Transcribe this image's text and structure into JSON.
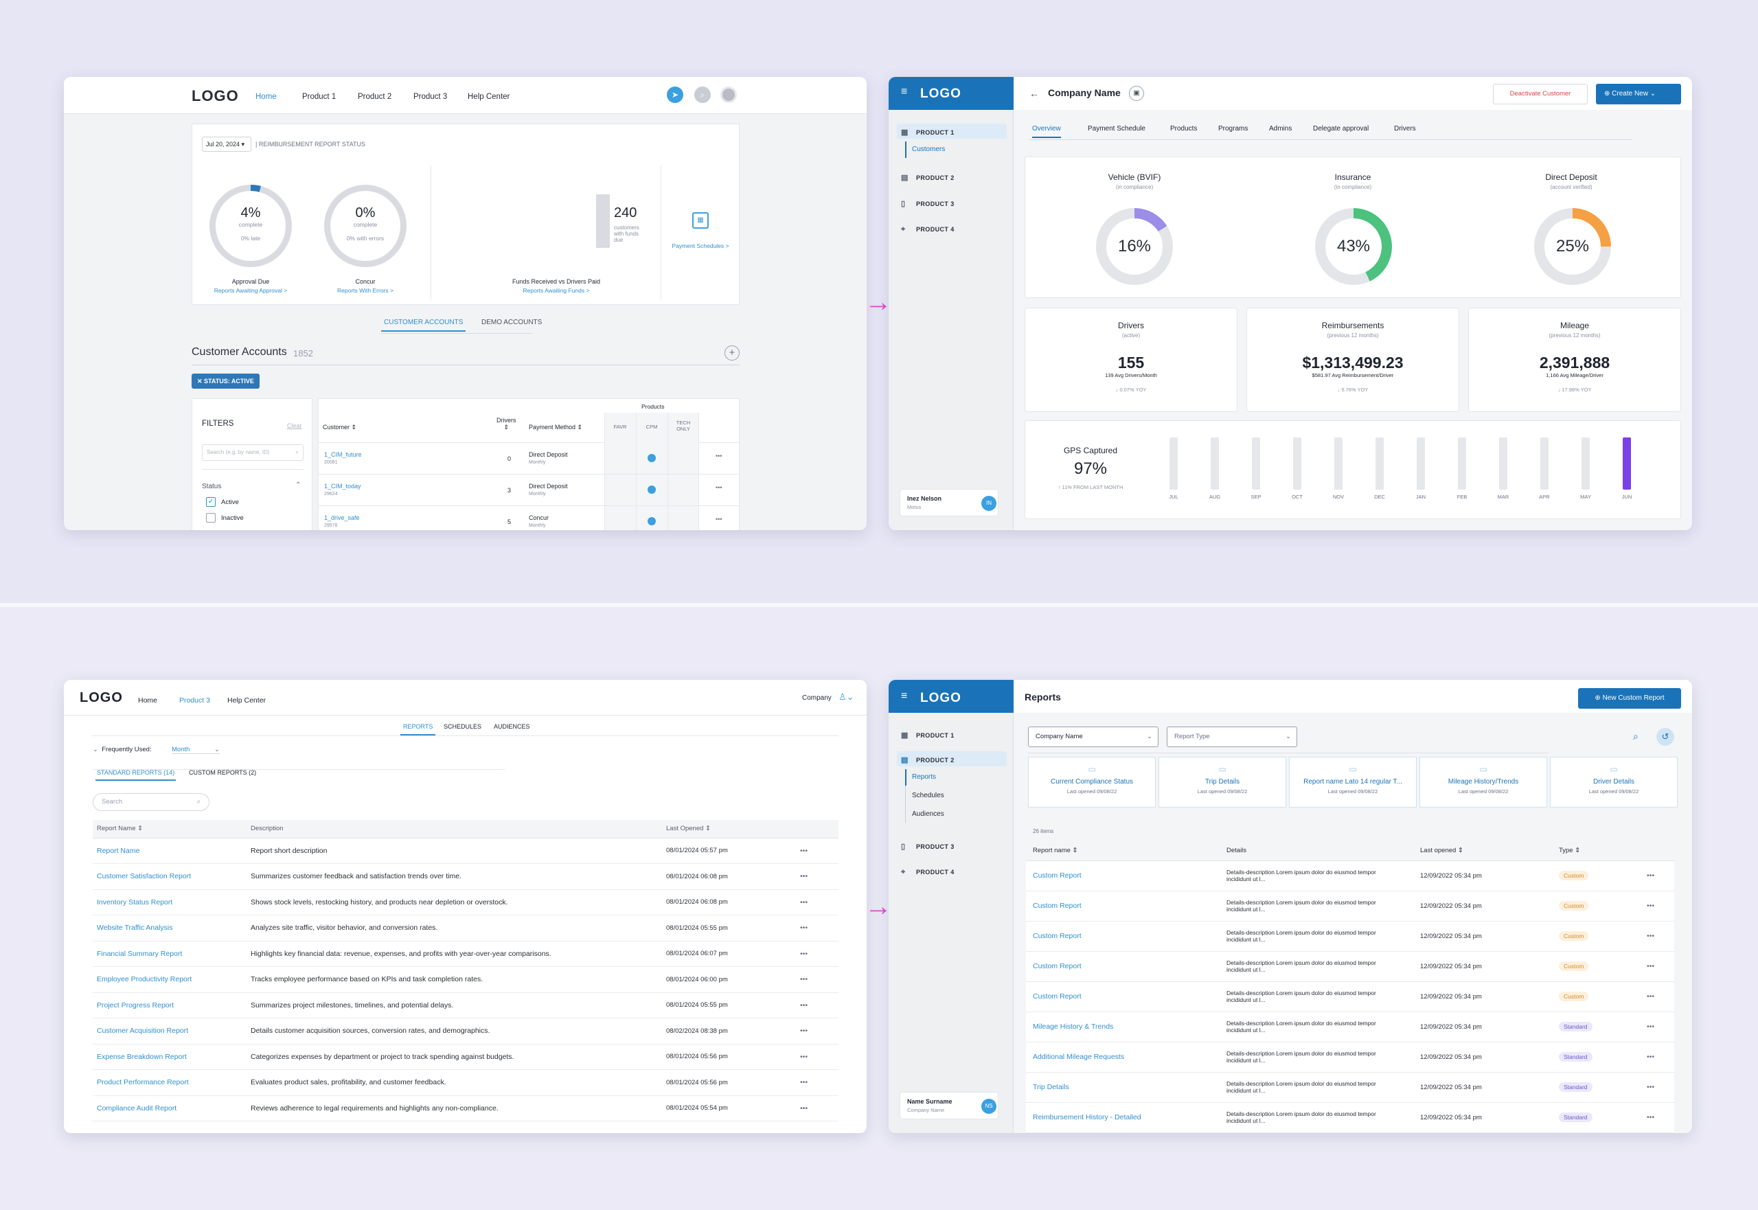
{
  "frameA": {
    "logo": "LOGO",
    "nav": [
      "Home",
      "Product 1",
      "Product 2",
      "Product 3",
      "Help Center"
    ],
    "date": "Jul 20, 2024",
    "status_title": "| REIMBURSEMENT REPORT STATUS",
    "kpis": [
      {
        "value": "4%",
        "sub1": "complete",
        "sub2": "0% late",
        "label": "Approval Due",
        "link": "Reports Awaiting Approval >",
        "fraction": 0.04
      },
      {
        "value": "0%",
        "sub1": "complete",
        "sub2": "0% with errors",
        "label": "Concur",
        "link": "Reports With Errors >",
        "fraction": 0
      }
    ],
    "funds": {
      "value": "240",
      "desc": "customers with funds due",
      "label": "Funds Received vs Drivers Paid",
      "link": "Reports Awaiting Funds >"
    },
    "payment_link": "Payment Schedules >",
    "tabs": [
      "CUSTOMER ACCOUNTS",
      "DEMO ACCOUNTS"
    ],
    "accounts_title": "Customer Accounts",
    "accounts_count": "1852",
    "chip": "STATUS: ACTIVE",
    "filters": {
      "title": "FILTERS",
      "clear": "Clear",
      "search_placeholder": "Search (e.g. by name, ID)",
      "status": "Status",
      "options": [
        "Active",
        "Inactive"
      ]
    },
    "table": {
      "products_header": "Products",
      "headers": [
        "Customer",
        "Drivers",
        "Payment Method",
        "FAVR",
        "CPM",
        "TECH ONLY"
      ],
      "rows": [
        {
          "name": "1_CIM_future",
          "id": "20081",
          "drivers": "0",
          "method": "Direct Deposit",
          "freq": "Monthly"
        },
        {
          "name": "1_CIM_today",
          "id": "29624",
          "drivers": "3",
          "method": "Direct Deposit",
          "freq": "Monthly"
        },
        {
          "name": "1_drive_safe",
          "id": "29576",
          "drivers": "5",
          "method": "Concur",
          "freq": "Monthly"
        }
      ]
    }
  },
  "frameB": {
    "logo": "LOGO",
    "menu": [
      "PRODUCT 1",
      "Customers",
      "PRODUCT 2",
      "PRODUCT 3",
      "PRODUCT 4"
    ],
    "company": "Company Name",
    "deactivate": "Deactivate Customer",
    "create": "Create New",
    "tabs": [
      "Overview",
      "Payment Schedule",
      "Products",
      "Programs",
      "Admins",
      "Delegate approval",
      "Drivers"
    ],
    "donuts": [
      {
        "title": "Vehicle (BVIF)",
        "sub": "(in compliance)",
        "value": "16%",
        "fraction": 0.16,
        "color": "#9b8de8"
      },
      {
        "title": "Insurance",
        "sub": "(in compliance)",
        "value": "43%",
        "fraction": 0.43,
        "color": "#4cc27e"
      },
      {
        "title": "Direct Deposit",
        "sub": "(account verified)",
        "value": "25%",
        "fraction": 0.25,
        "color": "#f5a043"
      }
    ],
    "stats": [
      {
        "title": "Drivers",
        "sub": "(active)",
        "value": "155",
        "note": "139 Avg Drivers/Month",
        "trend": "↓ 0.07% YOY"
      },
      {
        "title": "Reimbursements",
        "sub": "(previous 12 months)",
        "value": "$1,313,499.23",
        "note": "$581.97 Avg Reimbursement/Driver",
        "trend": "↓ 5.76% YOY"
      },
      {
        "title": "Mileage",
        "sub": "(previous 12 months)",
        "value": "2,391,888",
        "note": "1,166 Avg Mileage/Driver",
        "trend": "↓ 17.98% YOY"
      }
    ],
    "gps": {
      "title": "GPS Captured",
      "value": "97%",
      "trend": "↑ 11% FROM LAST MONTH"
    },
    "months": [
      "JUL",
      "AUG",
      "SEP",
      "OCT",
      "NOV",
      "DEC",
      "JAN",
      "FEB",
      "MAR",
      "APR",
      "MAY",
      "JUN"
    ],
    "user": {
      "name": "Inez Nelson",
      "sub": "Motus",
      "initials": "IN"
    }
  },
  "frameC": {
    "logo": "LOGO",
    "nav": [
      "Home",
      "Product 3",
      "Help Center"
    ],
    "company": "Company",
    "tabs": [
      "REPORTS",
      "SCHEDULES",
      "AUDIENCES"
    ],
    "freq_label": "Frequently Used:",
    "freq_value": "Month",
    "subtabs": [
      "STANDARD REPORTS (14)",
      "CUSTOM REPORTS (2)"
    ],
    "search_placeholder": "Search",
    "headers": [
      "Report Name",
      "Description",
      "Last Opened"
    ],
    "rows": [
      [
        "Report Name",
        "Report short description",
        "08/01/2024 05:57 pm"
      ],
      [
        "Customer Satisfaction Report",
        "Summarizes customer feedback and satisfaction trends over time.",
        "08/01/2024 06:08 pm"
      ],
      [
        "Inventory Status Report",
        "Shows stock levels, restocking history, and products near depletion or overstock.",
        "08/01/2024 06:08 pm"
      ],
      [
        "Website Traffic Analysis",
        "Analyzes site traffic, visitor behavior, and conversion rates.",
        "08/01/2024 05:55 pm"
      ],
      [
        "Financial Summary Report",
        "Highlights key financial data: revenue, expenses, and profits with year-over-year comparisons.",
        "08/01/2024 06:07 pm"
      ],
      [
        "Employee Productivity Report",
        "Tracks employee performance based on KPIs and task completion rates.",
        "08/01/2024 06:00 pm"
      ],
      [
        "Project Progress Report",
        "Summarizes project milestones, timelines, and potential delays.",
        "08/01/2024 05:55 pm"
      ],
      [
        "Customer Acquisition Report",
        "Details customer acquisition sources, conversion rates, and demographics.",
        "08/02/2024 08:38 pm"
      ],
      [
        "Expense Breakdown Report",
        "Categorizes expenses by department or project to track spending against budgets.",
        "08/01/2024 05:56 pm"
      ],
      [
        "Product Performance Report",
        "Evaluates product sales, profitability, and customer feedback.",
        "08/01/2024 05:56 pm"
      ],
      [
        "Compliance Audit Report",
        "Reviews adherence to legal requirements and highlights any non-compliance.",
        "08/01/2024 05:54 pm"
      ]
    ]
  },
  "frameD": {
    "logo": "LOGO",
    "menu": [
      "PRODUCT 1",
      "PRODUCT 2",
      "Reports",
      "Schedules",
      "Audiences",
      "PRODUCT 3",
      "PRODUCT 4"
    ],
    "title": "Reports",
    "new_button": "New Custom Report",
    "select1": "Company Name",
    "select2": "Report Type",
    "quick": [
      {
        "name": "Current Compliance Status",
        "date": "Last opened 09/08/22"
      },
      {
        "name": "Trip Details",
        "date": "Last opened 09/08/22"
      },
      {
        "name": "Report name Lato 14  regular T...",
        "date": "Last opened 09/08/22"
      },
      {
        "name": "Mileage History/Trends",
        "date": "Last opened 09/08/22"
      },
      {
        "name": "Driver Details",
        "date": "Last opened 09/08/22"
      }
    ],
    "count": "26 items",
    "headers": [
      "Report name",
      "Details",
      "Last opened",
      "Type"
    ],
    "details": "Details-description  Lorem ipsum dolor do eiusmod tempor incididunt ut l...",
    "rows": [
      {
        "name": "Custom Report",
        "date": "12/09/2022 05:34 pm",
        "type": "Custom"
      },
      {
        "name": "Custom Report",
        "date": "12/09/2022 05:34 pm",
        "type": "Custom"
      },
      {
        "name": "Custom Report",
        "date": "12/09/2022 05:34 pm",
        "type": "Custom"
      },
      {
        "name": "Custom Report",
        "date": "12/09/2022 05:34 pm",
        "type": "Custom"
      },
      {
        "name": "Custom Report",
        "date": "12/09/2022 05:34 pm",
        "type": "Custom"
      },
      {
        "name": "Mileage History & Trends",
        "date": "12/09/2022 05:34 pm",
        "type": "Standard"
      },
      {
        "name": "Additional Mileage Requests",
        "date": "12/09/2022 05:34 pm",
        "type": "Standard"
      },
      {
        "name": "Trip Details",
        "date": "12/09/2022 05:34 pm",
        "type": "Standard"
      },
      {
        "name": "Reimbursement History - Detailed",
        "date": "12/09/2022 05:34 pm",
        "type": "Standard"
      }
    ],
    "user": {
      "name": "Name Surname",
      "sub": "Company Name",
      "initials": "NS"
    }
  },
  "colors": {
    "accent": "#1a73b8",
    "link": "#2f8fcf",
    "arrow": "#e04bd0",
    "june_bar": "#7b3fe8"
  }
}
